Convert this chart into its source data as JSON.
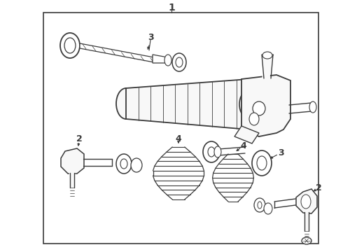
{
  "fig_width": 4.9,
  "fig_height": 3.6,
  "dpi": 100,
  "bg": "#ffffff",
  "lc": "#3a3a3a",
  "lc2": "#555555"
}
